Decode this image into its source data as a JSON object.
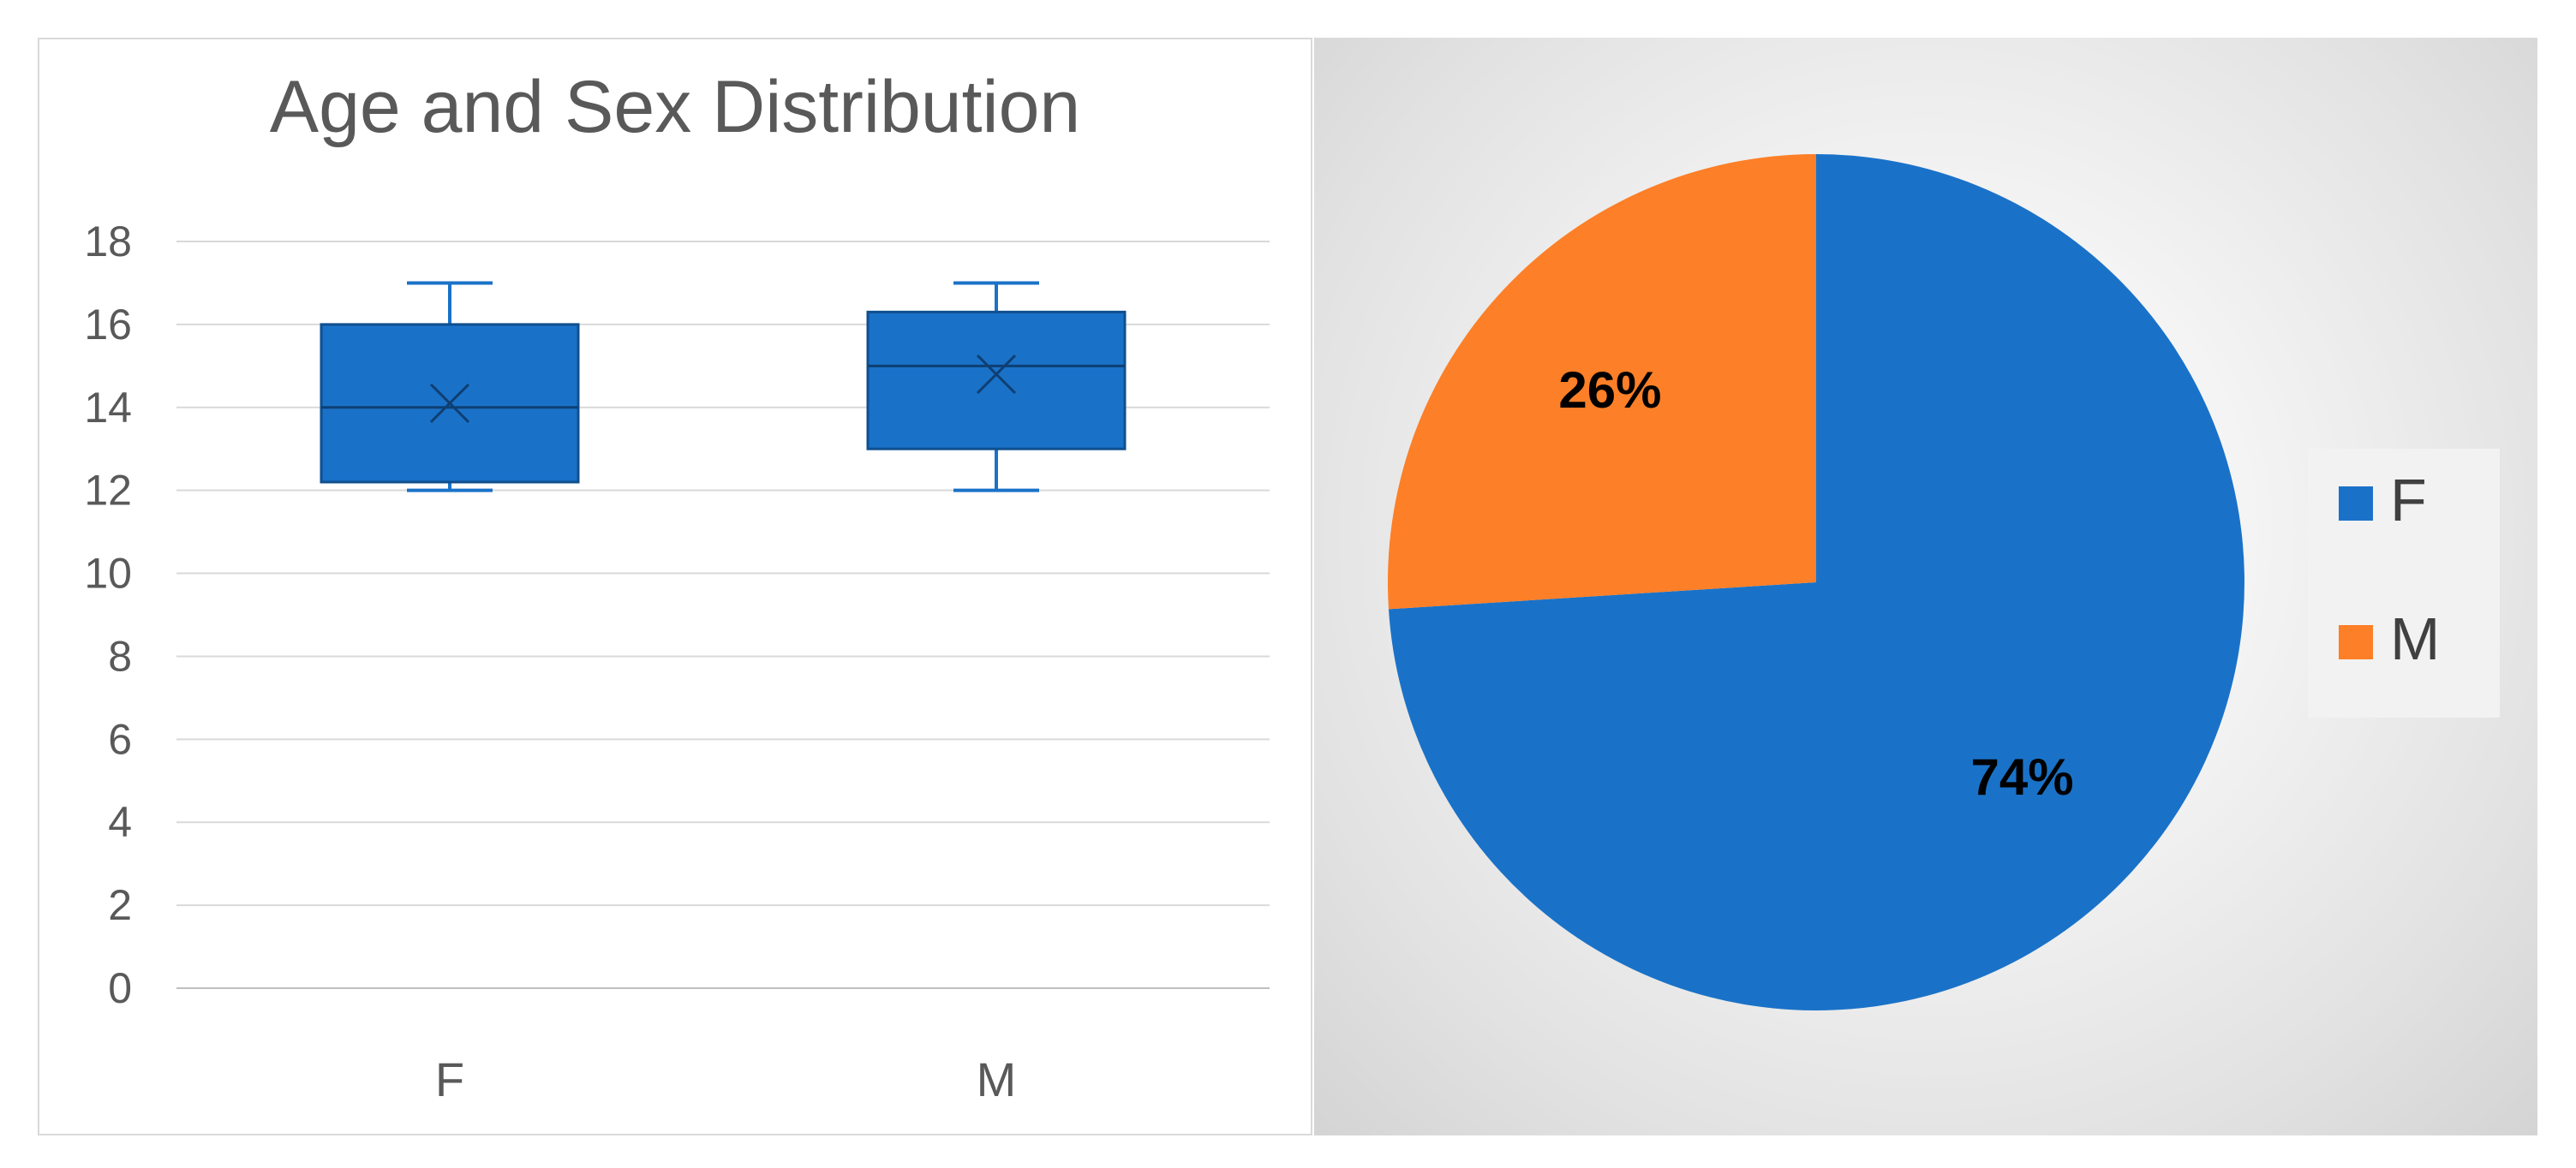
{
  "chart_data": [
    {
      "type": "box",
      "title": "Age and Sex Distribution",
      "xlabel": "",
      "ylabel": "",
      "ylim": [
        0,
        18
      ],
      "yticks": [
        0,
        2,
        4,
        6,
        8,
        10,
        12,
        14,
        16,
        18
      ],
      "grid": true,
      "categories": [
        "F",
        "M"
      ],
      "boxes": [
        {
          "category": "F",
          "min": 12,
          "q1": 12.2,
          "median": 14,
          "mean": 14.1,
          "q3": 16,
          "max": 17
        },
        {
          "category": "M",
          "min": 12,
          "q1": 13,
          "median": 15,
          "mean": 14.8,
          "q3": 16.3,
          "max": 17
        }
      ],
      "color": "#1a72c8"
    },
    {
      "type": "pie",
      "categories": [
        "F",
        "M"
      ],
      "values": [
        74,
        26
      ],
      "labels": [
        "74%",
        "26%"
      ],
      "colors": [
        "#1a72c8",
        "#fd7f27"
      ],
      "legend": {
        "position": "right",
        "entries": [
          "F",
          "M"
        ]
      }
    }
  ]
}
